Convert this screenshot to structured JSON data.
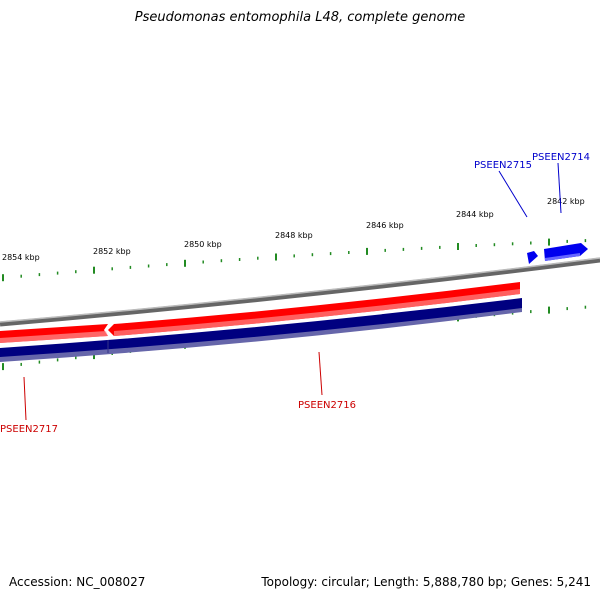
{
  "title": "Pseudomonas entomophila L48, complete genome",
  "footer": {
    "accession": "Accession: NC_008027",
    "summary": "Topology: circular; Length: 5,888,780 bp; Genes: 5,241"
  },
  "colors": {
    "forward_gene": "#ff0000",
    "reverse_gene": "#0000ee",
    "reverse_strand_bar": "#000080",
    "backbone": "#808080",
    "ticks": "#228b22",
    "forward_label": "#cc0000",
    "reverse_label": "#0000cc"
  },
  "scale_labels": [
    "2854 kbp",
    "2852 kbp",
    "2850 kbp",
    "2848 kbp",
    "2846 kbp",
    "2844 kbp",
    "2842 kbp"
  ],
  "genes": [
    {
      "name": "PSEEN2717",
      "strand": "forward"
    },
    {
      "name": "PSEEN2716",
      "strand": "forward"
    },
    {
      "name": "PSEEN2715",
      "strand": "reverse"
    },
    {
      "name": "PSEEN2714",
      "strand": "reverse"
    }
  ]
}
